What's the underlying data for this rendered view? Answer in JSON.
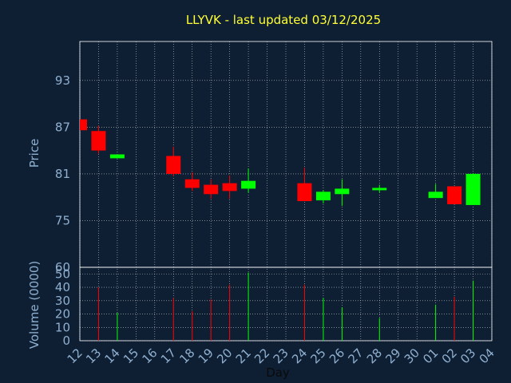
{
  "chart_data": {
    "type": "candlestick",
    "title": "LLYVK - last updated 03/12/2025",
    "xlabel": "Day",
    "price_panel": {
      "ylabel": "Price",
      "ylim": [
        69,
        98
      ],
      "yticks": [
        75,
        81,
        87,
        93
      ]
    },
    "volume_panel": {
      "ylabel": "Volume (0000)",
      "ylim": [
        0,
        55
      ],
      "yticks": [
        0,
        10,
        20,
        30,
        40,
        50
      ],
      "top_tick_label": "60"
    },
    "categories": [
      "12",
      "13",
      "14",
      "15",
      "16",
      "17",
      "18",
      "19",
      "20",
      "21",
      "22",
      "23",
      "24",
      "25",
      "26",
      "27",
      "28",
      "29",
      "30",
      "01",
      "02",
      "03",
      "04"
    ],
    "candles": [
      {
        "day": "12",
        "open": 88.0,
        "high": 88.0,
        "low": 86.6,
        "close": 86.6,
        "volume": 0
      },
      {
        "day": "13",
        "open": 86.5,
        "high": 87.2,
        "low": 83.6,
        "close": 84.0,
        "volume": 40
      },
      {
        "day": "14",
        "open": 83.0,
        "high": 83.5,
        "low": 83.0,
        "close": 83.5,
        "volume": 21
      },
      {
        "day": "17",
        "open": 83.3,
        "high": 84.5,
        "low": 80.7,
        "close": 81.0,
        "volume": 32
      },
      {
        "day": "18",
        "open": 80.3,
        "high": 81.2,
        "low": 78.8,
        "close": 79.2,
        "volume": 22
      },
      {
        "day": "19",
        "open": 79.6,
        "high": 80.3,
        "low": 77.8,
        "close": 78.4,
        "volume": 31
      },
      {
        "day": "20",
        "open": 79.8,
        "high": 80.8,
        "low": 77.8,
        "close": 78.8,
        "volume": 42
      },
      {
        "day": "21",
        "open": 79.1,
        "high": 81.7,
        "low": 78.6,
        "close": 80.1,
        "volume": 51
      },
      {
        "day": "24",
        "open": 79.8,
        "high": 81.8,
        "low": 77.5,
        "close": 77.5,
        "volume": 42
      },
      {
        "day": "25",
        "open": 77.6,
        "high": 78.9,
        "low": 77.2,
        "close": 78.7,
        "volume": 32
      },
      {
        "day": "26",
        "open": 78.4,
        "high": 80.3,
        "low": 76.9,
        "close": 79.1,
        "volume": 25
      },
      {
        "day": "28",
        "open": 78.9,
        "high": 79.6,
        "low": 78.6,
        "close": 79.2,
        "volume": 17
      },
      {
        "day": "01",
        "open": 77.9,
        "high": 79.7,
        "low": 77.9,
        "close": 78.7,
        "volume": 27
      },
      {
        "day": "02",
        "open": 79.4,
        "high": 79.4,
        "low": 77.1,
        "close": 77.1,
        "volume": 33
      },
      {
        "day": "03",
        "open": 77.0,
        "high": 81.1,
        "low": 77.0,
        "close": 81.0,
        "volume": 45
      }
    ],
    "colors": {
      "background": "#0f1f33",
      "up": "#00ff00",
      "down": "#ff0000",
      "grid": "#ffffff",
      "title": "#ffff33",
      "axis_text": "#8fb0d0"
    }
  }
}
